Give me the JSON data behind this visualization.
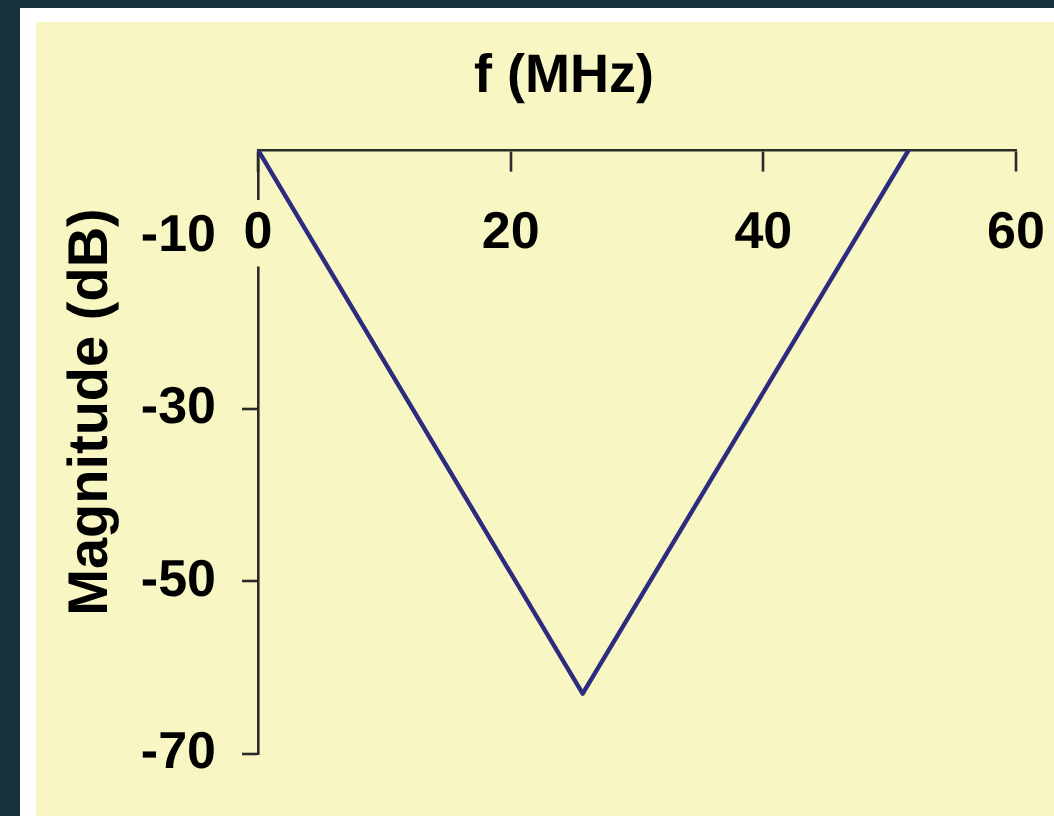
{
  "chart_data": {
    "type": "line",
    "xlabel": "f (MHz)",
    "ylabel": "Magnitude (dB)",
    "x": [
      0,
      25.7,
      51.5
    ],
    "series": [
      {
        "color": "#2b2b80",
        "values": [
          0,
          -63,
          0
        ]
      }
    ],
    "xlim": [
      0,
      60
    ],
    "xticks": [
      0,
      20,
      40,
      60
    ],
    "ylim": [
      -70,
      0
    ],
    "yticks": [
      -70,
      -50,
      -30,
      -10
    ],
    "grid": false,
    "legend": false,
    "marker": "none",
    "line_style": "solid"
  }
}
